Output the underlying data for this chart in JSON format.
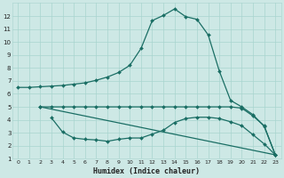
{
  "xlabel": "Humidex (Indice chaleur)",
  "bg_color": "#cde8e5",
  "grid_color": "#a8d4cf",
  "line_color": "#1a6e64",
  "xlim": [
    -0.5,
    23.5
  ],
  "ylim": [
    1,
    13
  ],
  "xticks": [
    0,
    1,
    2,
    3,
    4,
    5,
    6,
    7,
    8,
    9,
    10,
    11,
    12,
    13,
    14,
    15,
    16,
    17,
    18,
    19,
    20,
    21,
    22,
    23
  ],
  "yticks": [
    1,
    2,
    3,
    4,
    5,
    6,
    7,
    8,
    9,
    10,
    11,
    12
  ],
  "line1_x": [
    0,
    1,
    2,
    3,
    4,
    5,
    6,
    7,
    8,
    9,
    10,
    11,
    12,
    13,
    14,
    15,
    16,
    17,
    18,
    19,
    20,
    21,
    22,
    23
  ],
  "line1_y": [
    6.5,
    6.5,
    6.55,
    6.6,
    6.65,
    6.75,
    6.85,
    7.05,
    7.3,
    7.65,
    8.2,
    9.5,
    11.65,
    12.05,
    12.55,
    11.95,
    11.75,
    10.55,
    7.75,
    5.5,
    5.0,
    4.4,
    3.5,
    1.3
  ],
  "line2_x": [
    2,
    3,
    4,
    5,
    6,
    7,
    8,
    9,
    10,
    11,
    12,
    13,
    14,
    15,
    16,
    17,
    18,
    19,
    20,
    21,
    22,
    23
  ],
  "line2_y": [
    5.0,
    5.0,
    5.0,
    5.0,
    5.0,
    5.0,
    5.0,
    5.0,
    5.0,
    5.0,
    5.0,
    5.0,
    5.0,
    5.0,
    5.0,
    5.0,
    5.0,
    5.0,
    4.9,
    4.3,
    3.55,
    1.3
  ],
  "line3_x": [
    3,
    4,
    5,
    6,
    7,
    8,
    9,
    10,
    11,
    12,
    13,
    14,
    15,
    16,
    17,
    18,
    19,
    20,
    21,
    22,
    23
  ],
  "line3_y": [
    4.15,
    3.05,
    2.6,
    2.5,
    2.45,
    2.35,
    2.5,
    2.6,
    2.6,
    2.9,
    3.2,
    3.8,
    4.1,
    4.2,
    4.2,
    4.1,
    3.85,
    3.55,
    2.85,
    2.15,
    1.3
  ],
  "line4_x": [
    2,
    23
  ],
  "line4_y": [
    5.0,
    1.3
  ],
  "markersize": 2.0,
  "linewidth": 0.9
}
